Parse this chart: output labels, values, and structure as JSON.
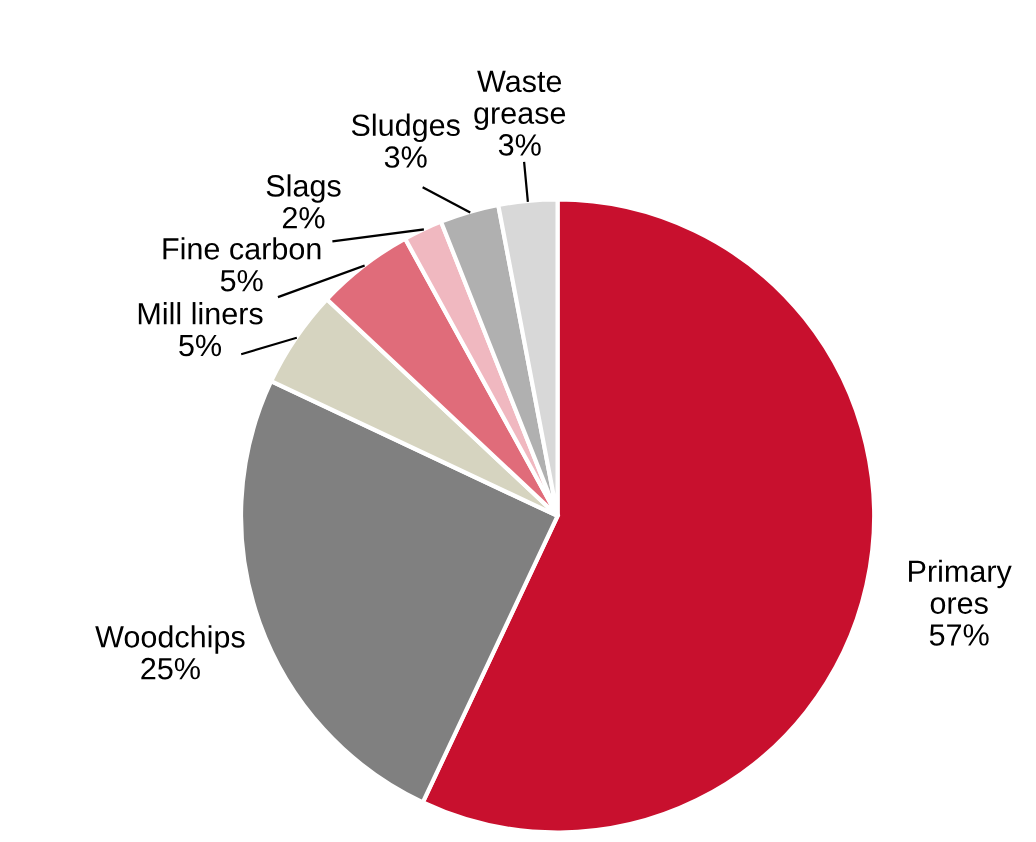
{
  "chart_data": {
    "type": "pie",
    "categories": [
      "Primary\nores",
      "Woodchips",
      "Mill liners",
      "Fine carbon",
      "Slags",
      "Sludges",
      "Waste\ngrease"
    ],
    "values": [
      57,
      25,
      5,
      5,
      2,
      3,
      3
    ],
    "colors": [
      "#c8102e",
      "#808080",
      "#d6d4c0",
      "#e06c7a",
      "#f0b8c0",
      "#b0b0b0",
      "#d8d8d8"
    ],
    "value_labels": [
      "57%",
      "25%",
      "5%",
      "5%",
      "2%",
      "3%",
      "3%"
    ],
    "legend": false
  }
}
